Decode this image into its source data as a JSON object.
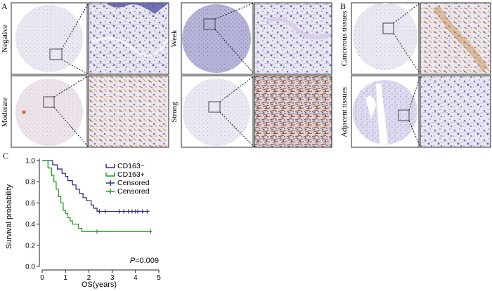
{
  "panels": {
    "a": {
      "letter": "A"
    },
    "b": {
      "letter": "B"
    },
    "c": {
      "letter": "C"
    }
  },
  "staining": [
    {
      "label": "Negative",
      "stain": "negative"
    },
    {
      "label": "Moderate",
      "stain": "moderate"
    },
    {
      "label": "Week",
      "stain": "weak"
    },
    {
      "label": "Strong",
      "stain": "strong"
    },
    {
      "label": "Cancerous tissues",
      "stain": "cancerous"
    },
    {
      "label": "Adjacent tissues",
      "stain": "adjacent"
    }
  ],
  "colors": {
    "hematoxylin": "#5a5fa6",
    "dab_brown": "#c07a3a",
    "cd163_negative": "#2e2f8a",
    "cd163_positive": "#1aa01a"
  },
  "chart_data": {
    "type": "line",
    "xlabel": "OS(years)",
    "ylabel": "Survival probability",
    "xlim": [
      0,
      5
    ],
    "ylim": [
      0,
      1
    ],
    "xticks": [
      "0",
      "1",
      "2",
      "3",
      "4",
      "5"
    ],
    "yticks": [
      "0.0",
      "0.2",
      "0.4",
      "0.6",
      "0.8",
      "1.0"
    ],
    "grid": false,
    "legend_position": "top-right",
    "legend": [
      "CD163−",
      "CD163+",
      "Censored",
      "Censored"
    ],
    "annotation": {
      "p_label": "P",
      "p_value": "=0.009"
    },
    "series": [
      {
        "name": "CD163−",
        "color": "#2e2f8a",
        "steps": [
          [
            0,
            1.0
          ],
          [
            0.35,
            1.0
          ],
          [
            0.45,
            0.96
          ],
          [
            0.65,
            0.92
          ],
          [
            0.85,
            0.88
          ],
          [
            1.0,
            0.85
          ],
          [
            1.1,
            0.81
          ],
          [
            1.3,
            0.77
          ],
          [
            1.45,
            0.73
          ],
          [
            1.6,
            0.69
          ],
          [
            1.75,
            0.65
          ],
          [
            1.9,
            0.62
          ],
          [
            2.1,
            0.58
          ],
          [
            2.2,
            0.55
          ],
          [
            2.35,
            0.52
          ],
          [
            4.6,
            0.52
          ]
        ],
        "censored": [
          [
            2.45,
            0.52
          ],
          [
            2.7,
            0.52
          ],
          [
            3.3,
            0.52
          ],
          [
            3.5,
            0.52
          ],
          [
            3.7,
            0.52
          ],
          [
            3.85,
            0.52
          ],
          [
            4.0,
            0.52
          ],
          [
            4.1,
            0.52
          ],
          [
            4.3,
            0.52
          ],
          [
            4.5,
            0.52
          ]
        ]
      },
      {
        "name": "CD163+",
        "color": "#1aa01a",
        "steps": [
          [
            0,
            1.0
          ],
          [
            0.15,
            1.0
          ],
          [
            0.25,
            0.93
          ],
          [
            0.4,
            0.86
          ],
          [
            0.5,
            0.8
          ],
          [
            0.6,
            0.73
          ],
          [
            0.7,
            0.66
          ],
          [
            0.8,
            0.6
          ],
          [
            0.9,
            0.53
          ],
          [
            1.0,
            0.5
          ],
          [
            1.1,
            0.46
          ],
          [
            1.2,
            0.43
          ],
          [
            1.3,
            0.4
          ],
          [
            1.55,
            0.36
          ],
          [
            1.7,
            0.33
          ],
          [
            4.7,
            0.33
          ]
        ],
        "censored": [
          [
            2.35,
            0.33
          ],
          [
            4.65,
            0.33
          ]
        ]
      }
    ]
  }
}
